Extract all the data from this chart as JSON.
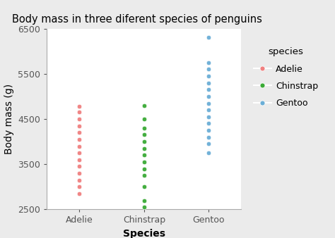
{
  "title": "Body mass in three diferent species of penguins",
  "xlabel": "Species",
  "ylabel": "Body mass (g)",
  "ylim": [
    2500,
    6500
  ],
  "yticks": [
    2500,
    3500,
    4500,
    5500,
    6500
  ],
  "species": [
    "Adelie",
    "Chinstrap",
    "Gentoo"
  ],
  "colors": {
    "Adelie": "#F08080",
    "Chinstrap": "#3aaa35",
    "Gentoo": "#6baed6"
  },
  "background_color": "#ebebeb",
  "panel_background": "#ffffff",
  "grid_color": "#ffffff",
  "adelie_data": [
    2850,
    2850,
    2900,
    2900,
    2900,
    2900,
    2950,
    2950,
    3000,
    3000,
    3050,
    3050,
    3050,
    3100,
    3100,
    3150,
    3150,
    3150,
    3200,
    3200,
    3200,
    3250,
    3250,
    3250,
    3250,
    3300,
    3300,
    3300,
    3300,
    3350,
    3350,
    3350,
    3350,
    3350,
    3400,
    3400,
    3400,
    3400,
    3400,
    3400,
    3450,
    3450,
    3450,
    3450,
    3450,
    3450,
    3500,
    3500,
    3500,
    3500,
    3500,
    3500,
    3500,
    3550,
    3550,
    3550,
    3550,
    3550,
    3600,
    3600,
    3600,
    3600,
    3600,
    3650,
    3650,
    3650,
    3650,
    3700,
    3700,
    3700,
    3700,
    3750,
    3750,
    3800,
    3800,
    3800,
    3800,
    3850,
    3850,
    3900,
    3900,
    3950,
    3950,
    4000,
    4000,
    4050,
    4100,
    4150,
    4200,
    4250,
    4300,
    4350,
    4400,
    4450,
    4500,
    4650,
    4650,
    4675,
    4700,
    4775,
    4800,
    4825,
    4850
  ],
  "chinstrap_data": [
    2550,
    2600,
    2700,
    2700,
    3000,
    3000,
    3250,
    3250,
    3300,
    3300,
    3350,
    3350,
    3400,
    3400,
    3400,
    3450,
    3450,
    3500,
    3500,
    3550,
    3550,
    3600,
    3600,
    3600,
    3650,
    3650,
    3700,
    3700,
    3700,
    3750,
    3750,
    3800,
    3800,
    3850,
    3850,
    3850,
    3900,
    3950,
    4000,
    4050,
    4100,
    4150,
    4200,
    4300,
    4400,
    4500,
    4800
  ],
  "gentoo_data": [
    3750,
    3800,
    3950,
    4000,
    4050,
    4100,
    4150,
    4200,
    4250,
    4300,
    4350,
    4400,
    4400,
    4450,
    4450,
    4500,
    4500,
    4500,
    4550,
    4550,
    4600,
    4600,
    4650,
    4650,
    4650,
    4700,
    4700,
    4700,
    4700,
    4750,
    4750,
    4750,
    4750,
    4750,
    4800,
    4800,
    4800,
    4850,
    4850,
    4850,
    4900,
    4900,
    4900,
    4950,
    4950,
    5000,
    5000,
    5000,
    5050,
    5050,
    5100,
    5100,
    5150,
    5150,
    5200,
    5200,
    5250,
    5250,
    5300,
    5300,
    5350,
    5400,
    5450,
    5500,
    5500,
    5550,
    5550,
    5600,
    5600,
    5650,
    5700,
    5700,
    5750,
    5800,
    5850,
    6300
  ],
  "marker_size": 22,
  "marker_edge_width": 0.5,
  "marker_edge_color": "white",
  "title_fontsize": 10.5,
  "axis_label_fontsize": 10,
  "tick_fontsize": 9,
  "legend_fontsize": 9,
  "legend_title_fontsize": 9.5
}
